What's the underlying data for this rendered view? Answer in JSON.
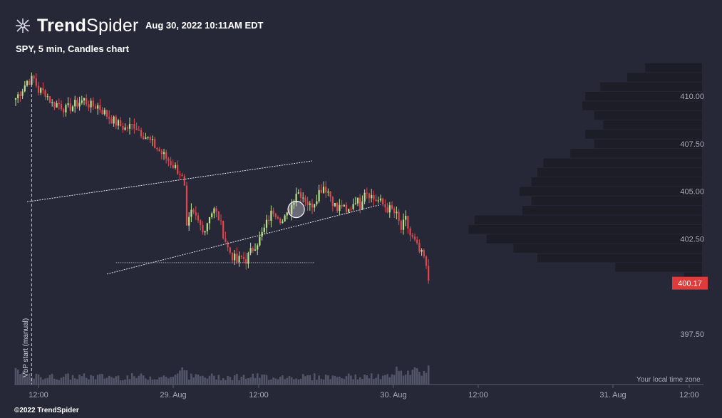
{
  "header": {
    "brand_bold": "Trend",
    "brand_light": "Spider",
    "datetime": "Aug 30, 2022 10:11AM EDT",
    "subtitle": "SPY, 5 min, Candles chart"
  },
  "footer": {
    "copyright": "©2022 TrendSpider",
    "timezone": "Your local time zone",
    "vbp_label": "VbP start (manual)"
  },
  "colors": {
    "background": "#262838",
    "up_candle": "#b9e38a",
    "down_candle": "#e0474c",
    "price_badge": "#e03a3a",
    "volume": "#525468",
    "volume_profile": "#1b1c26"
  },
  "chart_data": {
    "type": "candlestick",
    "symbol": "SPY",
    "timeframe": "5 min",
    "ylim": [
      396.0,
      412.5
    ],
    "y_ticks": [
      "410.00",
      "407.50",
      "405.00",
      "402.50",
      "397.50"
    ],
    "x_ticks": [
      "12:00",
      "29. Aug",
      "12:00",
      "30. Aug",
      "12:00",
      "31. Aug",
      "12:00"
    ],
    "last_price": "400.17",
    "price_path": {
      "segment_1": [
        [
          0,
          409.9
        ],
        [
          3,
          410.4
        ],
        [
          5,
          410.8
        ],
        [
          8,
          410.9
        ],
        [
          10,
          410.3
        ],
        [
          13,
          410.2
        ],
        [
          16,
          409.6
        ],
        [
          19,
          409.6
        ],
        [
          22,
          409.3
        ],
        [
          25,
          409.5
        ],
        [
          28,
          409.7
        ],
        [
          30,
          409.8
        ],
        [
          33,
          409.5
        ],
        [
          36,
          409.5
        ],
        [
          40,
          409.0
        ],
        [
          44,
          408.6
        ],
        [
          48,
          408.3
        ],
        [
          52,
          408.5
        ],
        [
          56,
          408.0
        ],
        [
          60,
          407.5
        ],
        [
          64,
          407.0
        ],
        [
          68,
          406.5
        ],
        [
          72,
          406.0
        ],
        [
          74,
          405.3
        ]
      ],
      "segment_2": [
        [
          75,
          403.0
        ],
        [
          77,
          403.8
        ],
        [
          79,
          403.6
        ],
        [
          81,
          403.2
        ],
        [
          83,
          403.0
        ],
        [
          85,
          403.8
        ],
        [
          87,
          404.0
        ],
        [
          89,
          403.6
        ],
        [
          91,
          402.8
        ],
        [
          93,
          402.0
        ],
        [
          95,
          401.6
        ],
        [
          97,
          401.3
        ],
        [
          99,
          401.5
        ],
        [
          101,
          401.4
        ],
        [
          103,
          401.8
        ],
        [
          105,
          402.2
        ],
        [
          107,
          402.5
        ],
        [
          109,
          403.0
        ],
        [
          111,
          403.6
        ],
        [
          113,
          404.0
        ],
        [
          115,
          403.8
        ],
        [
          117,
          403.4
        ],
        [
          119,
          403.7
        ],
        [
          121,
          404.3
        ],
        [
          123,
          405.0
        ],
        [
          125,
          404.9
        ],
        [
          127,
          404.6
        ],
        [
          129,
          404.2
        ],
        [
          131,
          404.5
        ],
        [
          133,
          405.0
        ],
        [
          135,
          405.3
        ],
        [
          137,
          405.0
        ],
        [
          139,
          404.5
        ],
        [
          141,
          404.0
        ],
        [
          143,
          404.3
        ],
        [
          145,
          403.8
        ],
        [
          147,
          404.2
        ],
        [
          149,
          404.6
        ],
        [
          151,
          404.3
        ],
        [
          153,
          405.1
        ],
        [
          155,
          404.9
        ],
        [
          157,
          404.6
        ],
        [
          159,
          404.5
        ],
        [
          161,
          404.3
        ],
        [
          163,
          404.1
        ],
        [
          165,
          404.0
        ],
        [
          167,
          403.7
        ],
        [
          169,
          403.0
        ],
        [
          171,
          403.5
        ],
        [
          173,
          402.7
        ],
        [
          175,
          402.3
        ],
        [
          177,
          401.8
        ],
        [
          179,
          401.5
        ],
        [
          180,
          400.9
        ],
        [
          181,
          400.3
        ]
      ]
    },
    "annotations": {
      "upper_channel_line": [
        [
          5,
          404.45
        ],
        [
          130,
          406.6
        ]
      ],
      "lower_channel_line": [
        [
          40,
          400.65
        ],
        [
          160,
          404.3
        ]
      ],
      "horizontal_line": [
        [
          44,
          401.25
        ],
        [
          131,
          401.25
        ]
      ],
      "circle_marker": [
        [
          123,
          404.05
        ]
      ],
      "vbp_start": [
        [
          7,
          410.9
        ]
      ]
    },
    "volume_profile_levels": [
      411.5,
      411.0,
      410.5,
      410.0,
      409.5,
      409.0,
      408.5,
      408.0,
      407.5,
      407.0,
      406.5,
      406.0,
      405.5,
      405.0,
      404.5,
      404.0,
      403.5,
      403.0,
      402.5,
      402.0,
      401.5,
      401.0,
      400.5
    ],
    "volume_profile_values": [
      0.19,
      0.25,
      0.34,
      0.39,
      0.4,
      0.36,
      0.33,
      0.39,
      0.36,
      0.44,
      0.53,
      0.55,
      0.57,
      0.61,
      0.57,
      0.6,
      0.76,
      0.78,
      0.72,
      0.63,
      0.55,
      0.29,
      0.06
    ]
  }
}
